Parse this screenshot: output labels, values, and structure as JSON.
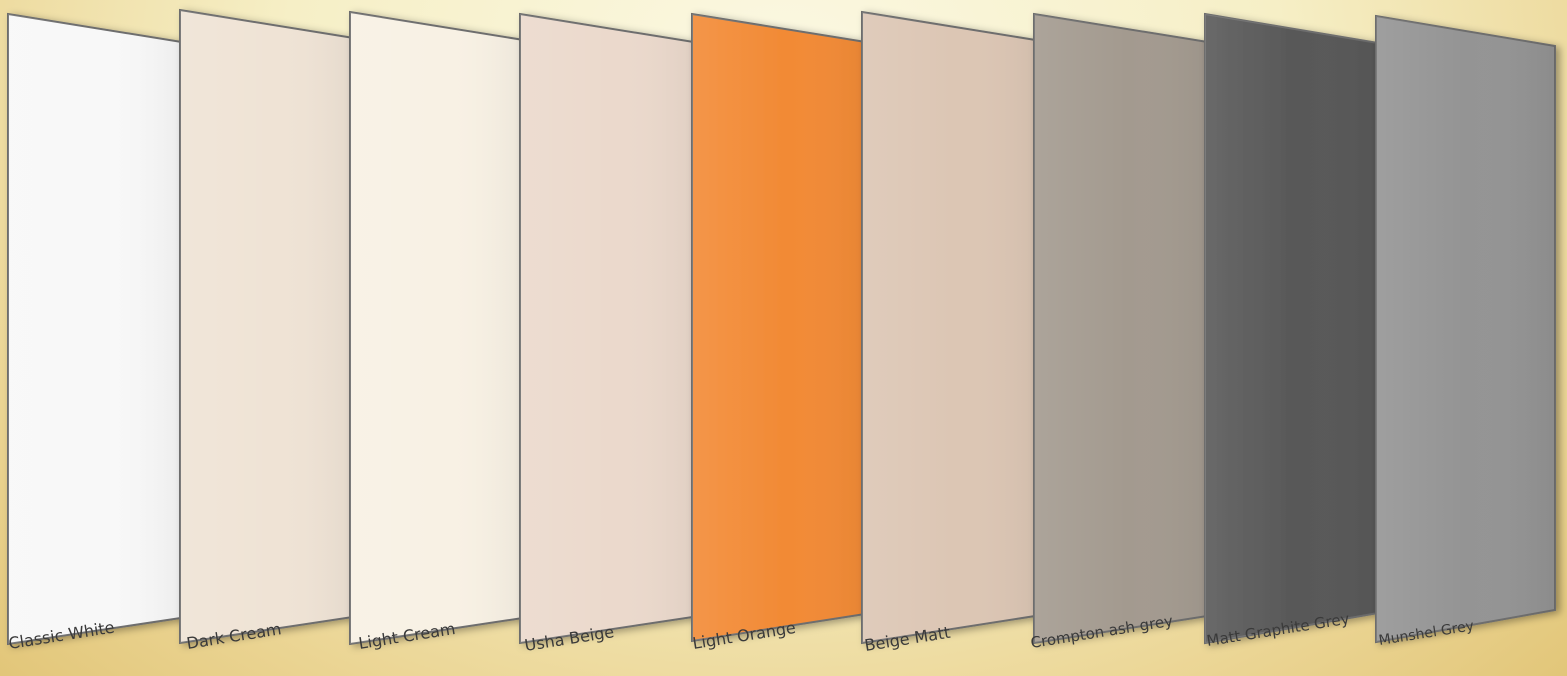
{
  "swatches": [
    {
      "name": "Classic White",
      "color": "#f8f8f8"
    },
    {
      "name": "Dark Cream",
      "color": "#efe3d5"
    },
    {
      "name": "Light Cream",
      "color": "#f8f1e4"
    },
    {
      "name": "Usha Beige",
      "color": "#ebd9cc"
    },
    {
      "name": "Light Orange",
      "color": "#f28a35"
    },
    {
      "name": "Beige Matt",
      "color": "#dcc6b4"
    },
    {
      "name": "Crompton ash grey",
      "color": "#a39a8f"
    },
    {
      "name": "Matt Graphite Grey",
      "color": "#585858"
    },
    {
      "name": "Munshel Grey",
      "color": "#949494"
    }
  ]
}
